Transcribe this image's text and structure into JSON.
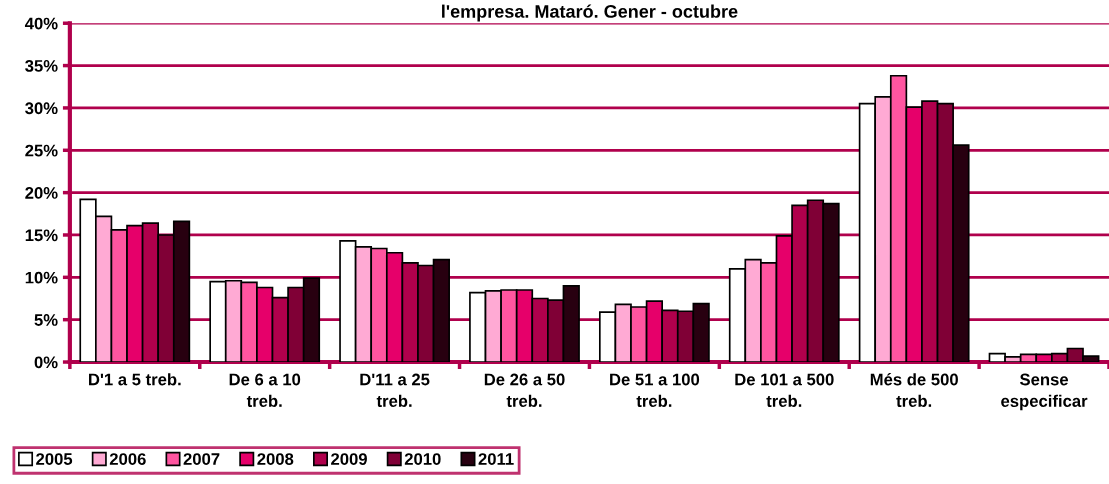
{
  "chart_data": {
    "type": "bar",
    "title": "l'empresa. Mataró. Gener - octubre",
    "categories": [
      "D'1 a 5 treb.",
      "De 6 a 10\ntreb.",
      "D'11 a 25\ntreb.",
      "De 26 a 50\ntreb.",
      "De 51 a 100\ntreb.",
      "De 101 a 500\ntreb.",
      "Més de 500\ntreb.",
      "Sense\nespecificar"
    ],
    "series": [
      {
        "name": "2005",
        "color": "#ffffff",
        "values": [
          19.2,
          9.5,
          14.3,
          8.2,
          5.9,
          11.0,
          30.5,
          1.0
        ]
      },
      {
        "name": "2006",
        "color": "#ffaad4",
        "values": [
          17.2,
          9.6,
          13.6,
          8.4,
          6.8,
          12.1,
          31.3,
          0.6
        ]
      },
      {
        "name": "2007",
        "color": "#ff55a0",
        "values": [
          15.6,
          9.4,
          13.4,
          8.5,
          6.5,
          11.7,
          33.8,
          0.9
        ]
      },
      {
        "name": "2008",
        "color": "#e6006a",
        "values": [
          16.1,
          8.8,
          12.9,
          8.5,
          7.2,
          14.9,
          30.1,
          0.9
        ]
      },
      {
        "name": "2009",
        "color": "#b0004c",
        "values": [
          16.4,
          7.6,
          11.7,
          7.5,
          6.1,
          18.5,
          30.8,
          1.0
        ]
      },
      {
        "name": "2010",
        "color": "#800036",
        "values": [
          15.0,
          8.8,
          11.4,
          7.3,
          6.0,
          19.1,
          30.5,
          1.6
        ]
      },
      {
        "name": "2011",
        "color": "#280010",
        "values": [
          16.6,
          9.9,
          12.1,
          9.0,
          6.9,
          18.7,
          25.6,
          0.7
        ]
      }
    ],
    "ylim": [
      0,
      40
    ],
    "yticks": [
      {
        "value": 0,
        "label": "0%"
      },
      {
        "value": 5,
        "label": "5%"
      },
      {
        "value": 10,
        "label": "10%"
      },
      {
        "value": 15,
        "label": "15%"
      },
      {
        "value": 20,
        "label": "20%"
      },
      {
        "value": 25,
        "label": "25%"
      },
      {
        "value": 30,
        "label": "30%"
      },
      {
        "value": 35,
        "label": "35%"
      },
      {
        "value": 40,
        "label": "40%"
      }
    ],
    "grid": "y",
    "legend": "bottom left"
  }
}
